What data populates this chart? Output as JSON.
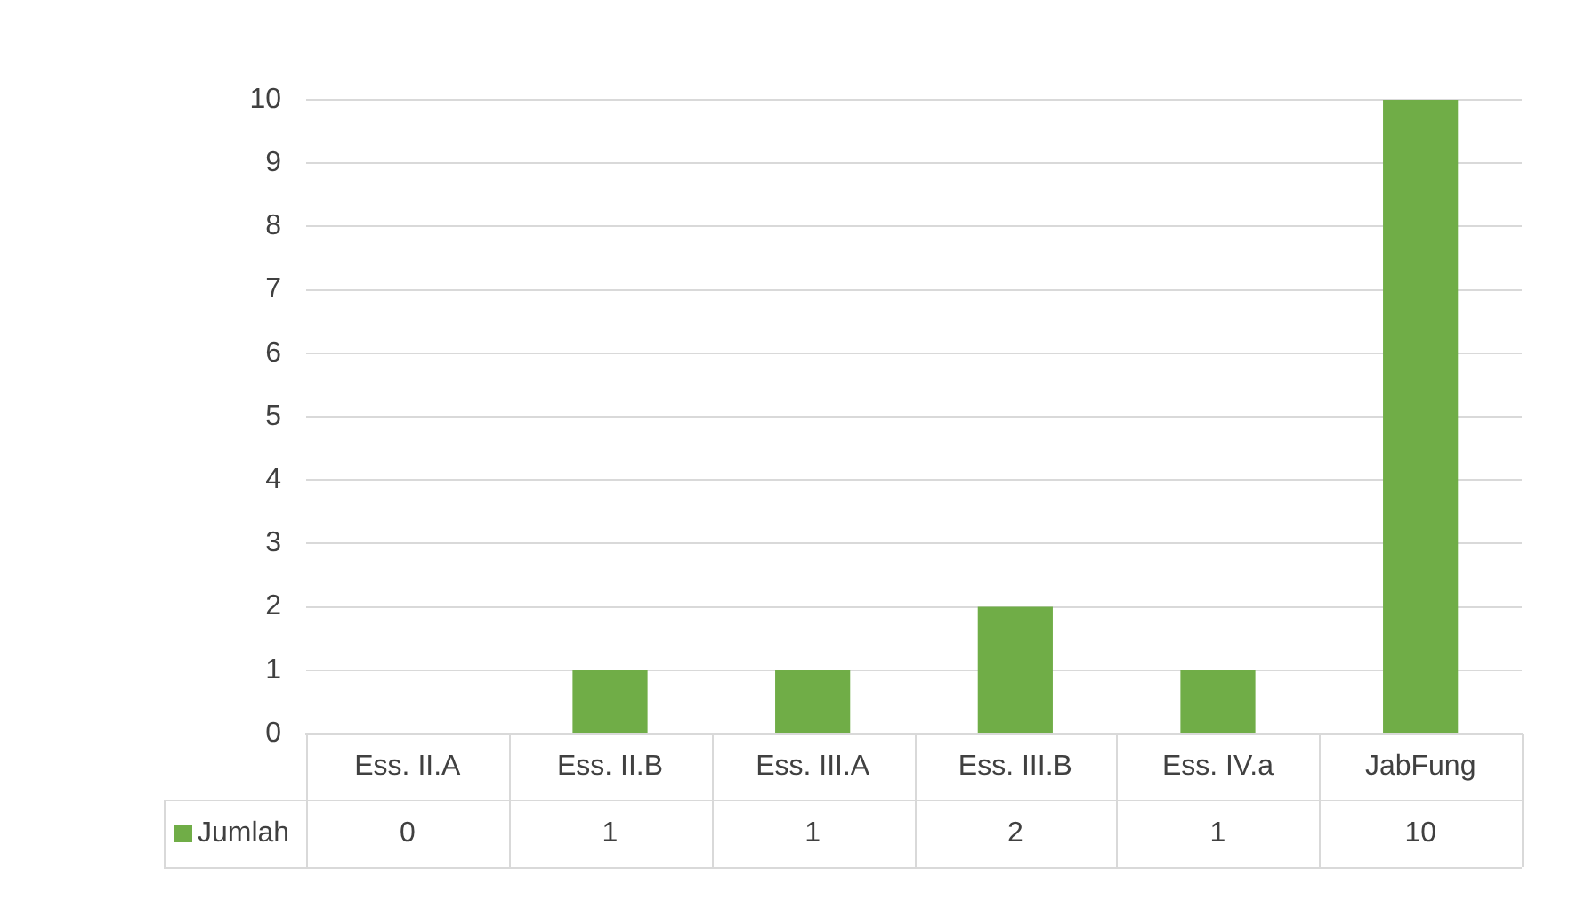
{
  "chart_data": {
    "type": "bar",
    "categories": [
      "Ess. II.A",
      "Ess. II.B",
      "Ess. III.A",
      "Ess. III.B",
      "Ess. IV.a",
      "JabFung"
    ],
    "series": [
      {
        "name": "Jumlah",
        "color": "#70ad47",
        "values": [
          0,
          1,
          1,
          2,
          1,
          10
        ]
      }
    ],
    "ylim": [
      0,
      10
    ],
    "yticks": [
      0,
      1,
      2,
      3,
      4,
      5,
      6,
      7,
      8,
      9,
      10
    ],
    "grid": "y",
    "legend": "bottom left",
    "data_labels": true
  }
}
